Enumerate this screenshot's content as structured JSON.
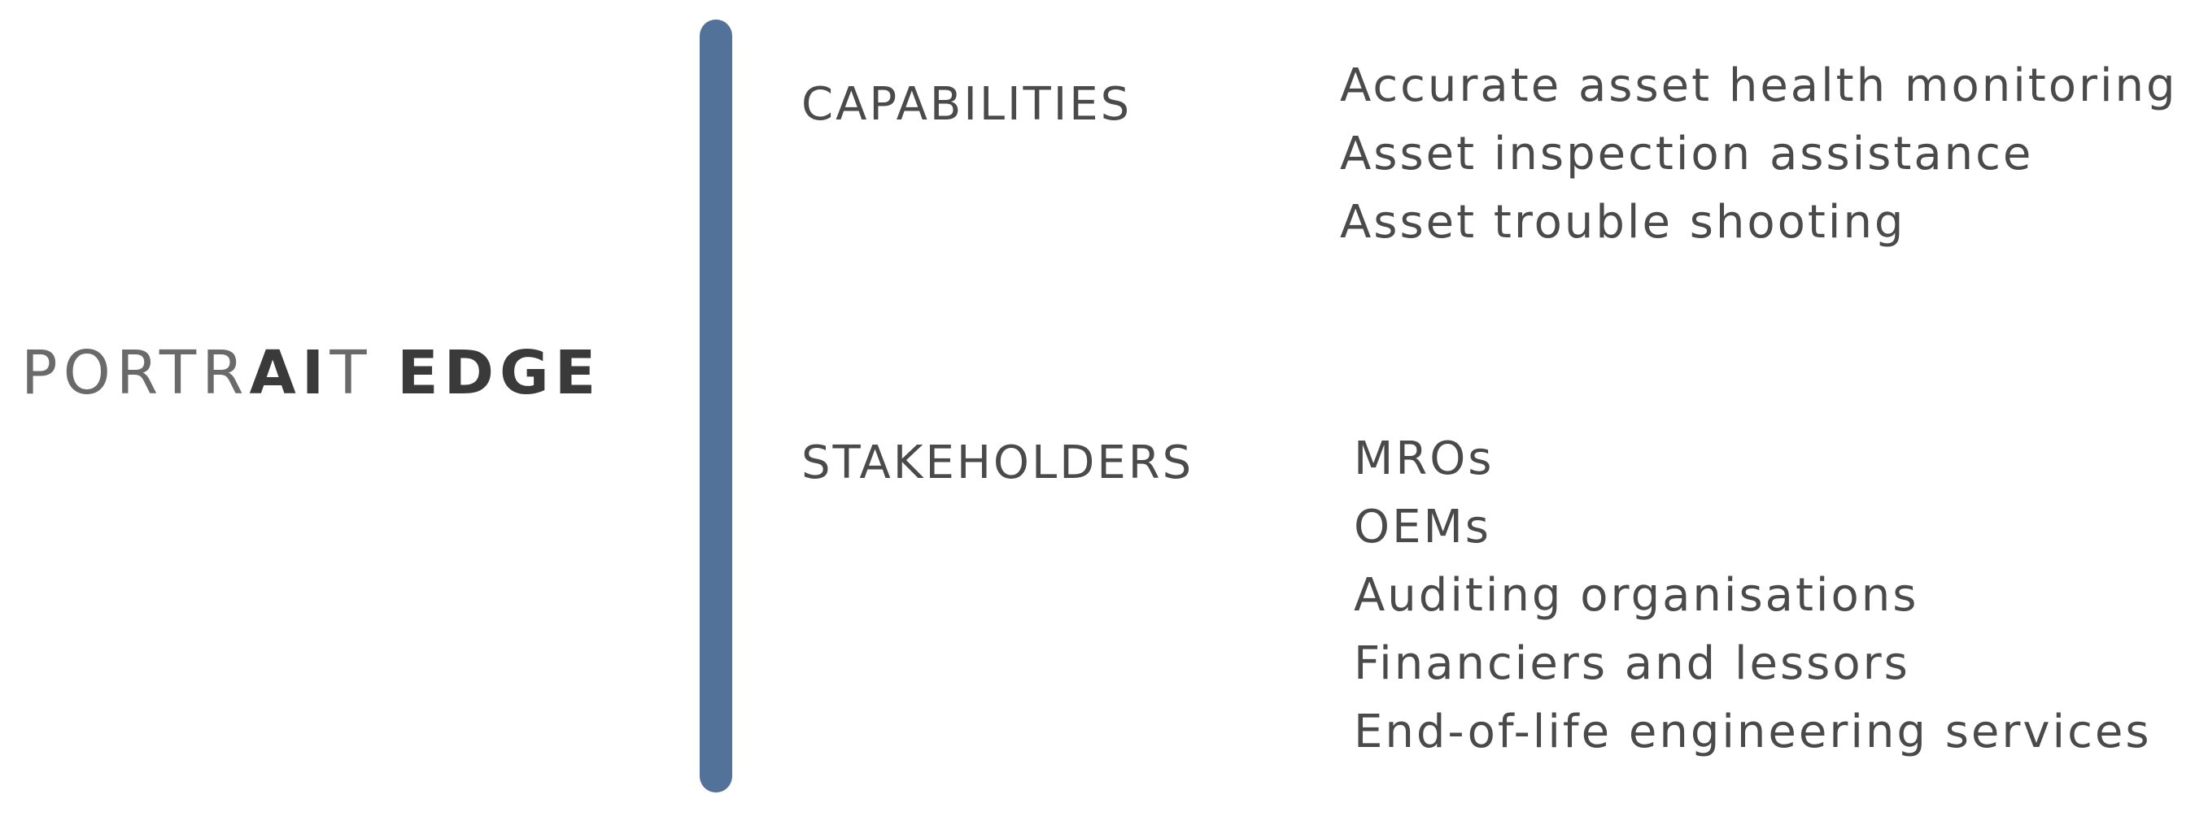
{
  "brand": {
    "part_light_1": "PORTR",
    "part_bold_1": "AI",
    "part_light_2": "T ",
    "part_bold_2": "EDGE"
  },
  "accent_color": "#53729a",
  "sections": [
    {
      "heading": "CAPABILITIES",
      "items": [
        "Accurate asset health monitoring",
        "Asset inspection assistance",
        "Asset trouble shooting"
      ]
    },
    {
      "heading": "STAKEHOLDERS",
      "items": [
        "MROs",
        "OEMs",
        "Auditing organisations",
        "Financiers and lessors",
        "End-of-life engineering services"
      ]
    }
  ]
}
